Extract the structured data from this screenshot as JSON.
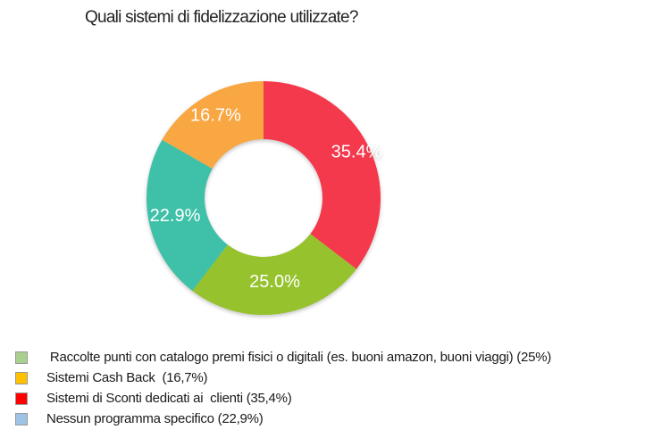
{
  "chart_data": {
    "type": "pie",
    "subtype": "donut",
    "title": "Quali sistemi di fidelizzazione utilizzate?",
    "direction": "clockwise",
    "start_angle_deg": 0,
    "inner_radius_ratio": 0.5,
    "slices": [
      {
        "name": "Sistemi di Sconti dedicati ai clienti",
        "value": 35.4,
        "label": "35.4%",
        "color": "#F5394C"
      },
      {
        "name": "Raccolte punti con catalogo premi fisici o digitali",
        "value": 25.0,
        "label": "25.0%",
        "color": "#96C22D"
      },
      {
        "name": "Nessun programma specifico",
        "value": 22.9,
        "label": "22.9%",
        "color": "#3EC1A8"
      },
      {
        "name": "Sistemi Cash Back",
        "value": 16.7,
        "label": "16.7%",
        "color": "#F9A743"
      }
    ],
    "legend_position": "bottom-left",
    "legend": [
      {
        "text": " Raccolte punti con catalogo premi fisici o digitali (es. buoni amazon, buoni viaggi) (25%)",
        "color": "#A9D08E"
      },
      {
        "text": "Sistemi Cash Back  (16,7%)",
        "color": "#FFC000"
      },
      {
        "text": "Sistemi di Sconti dedicati ai  clienti (35,4%)",
        "color": "#FF0000"
      },
      {
        "text": "Nessun programma specifico (22,9%)",
        "color": "#9DC3E6"
      }
    ]
  }
}
